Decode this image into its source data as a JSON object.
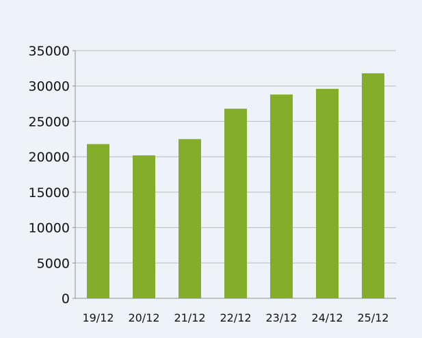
{
  "chart_data": {
    "type": "bar",
    "categories": [
      "19/12",
      "20/12",
      "21/12",
      "22/12",
      "23/12",
      "24/12",
      "25/12"
    ],
    "values": [
      21800,
      20200,
      22500,
      26800,
      28800,
      29600,
      31800
    ],
    "ylim": [
      0,
      35000
    ],
    "yticks": [
      "0",
      "5000",
      "10000",
      "15000",
      "20000",
      "25000",
      "30000",
      "35000"
    ],
    "grid": true,
    "colors": {
      "bar": "#84ad2a",
      "grid": "#b9bcc0",
      "axis": "#8d9194",
      "background": "#eef3f9"
    }
  }
}
